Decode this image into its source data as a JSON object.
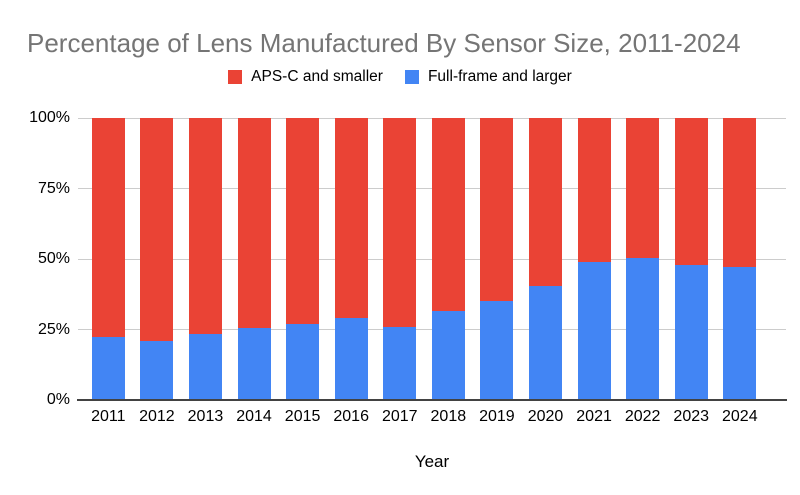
{
  "title": "Percentage of Lens Manufactured By Sensor Size, 2011-2024",
  "chart_data": {
    "type": "bar",
    "stacked": true,
    "stacking": "percent",
    "title": "Percentage of Lens Manufactured By Sensor Size, 2011-2024",
    "categories": [
      "2011",
      "2012",
      "2013",
      "2014",
      "2015",
      "2016",
      "2017",
      "2018",
      "2019",
      "2020",
      "2021",
      "2022",
      "2023",
      "2024"
    ],
    "series": [
      {
        "name": "APS-C and smaller",
        "color": "#ea4335",
        "values": [
          77.5,
          79,
          76.5,
          74.5,
          73,
          71,
          74,
          68.5,
          65,
          59.5,
          51,
          49.5,
          52,
          53
        ]
      },
      {
        "name": "Full-frame and larger",
        "color": "#4285f4",
        "values": [
          22.5,
          21,
          23.5,
          25.5,
          27,
          29,
          26,
          31.5,
          35,
          40.5,
          49,
          50.5,
          48,
          47
        ]
      }
    ],
    "xlabel": "Year",
    "ylabel": "",
    "yticks": [
      "0%",
      "25%",
      "50%",
      "75%",
      "100%"
    ],
    "ylim": [
      0,
      100
    ],
    "grid": true,
    "legend_position": "top"
  },
  "colors": {
    "background": "#ffffff",
    "title_text": "#757575",
    "axis_text": "#000000",
    "gridline": "#cccccc",
    "axis_line": "#424242"
  }
}
